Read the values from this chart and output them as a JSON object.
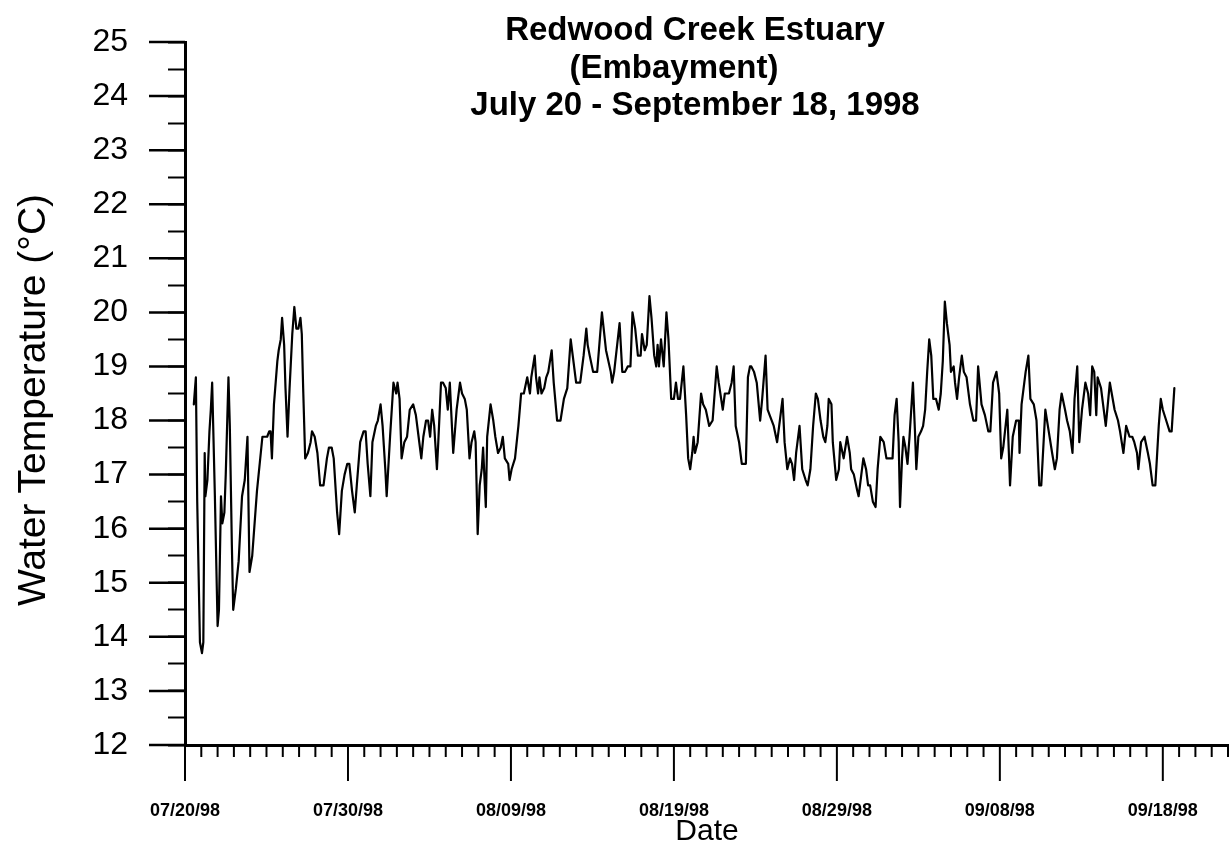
{
  "chart_data": {
    "type": "line",
    "title": "Redwood Creek Estuary\n(Embayment)\nJuly 20 - September 18, 1998",
    "xlabel": "Date",
    "ylabel": "Water Temperature (°C)",
    "grid": false,
    "xlim": [
      "1998-07-20",
      "1998-09-22"
    ],
    "xticks": [
      {
        "value": "1998-07-20",
        "label": "07/20/98"
      },
      {
        "value": "1998-07-21",
        "label": null
      },
      {
        "value": "1998-07-22",
        "label": null
      },
      {
        "value": "1998-07-23",
        "label": null
      },
      {
        "value": "1998-07-24",
        "label": null
      },
      {
        "value": "1998-07-25",
        "label": null
      },
      {
        "value": "1998-07-26",
        "label": null
      },
      {
        "value": "1998-07-27",
        "label": null
      },
      {
        "value": "1998-07-28",
        "label": null
      },
      {
        "value": "1998-07-29",
        "label": null
      },
      {
        "value": "1998-07-30",
        "label": "07/30/98"
      },
      {
        "value": "1998-07-31",
        "label": null
      },
      {
        "value": "1998-08-01",
        "label": null
      },
      {
        "value": "1998-08-02",
        "label": null
      },
      {
        "value": "1998-08-03",
        "label": null
      },
      {
        "value": "1998-08-04",
        "label": null
      },
      {
        "value": "1998-08-05",
        "label": null
      },
      {
        "value": "1998-08-06",
        "label": null
      },
      {
        "value": "1998-08-07",
        "label": null
      },
      {
        "value": "1998-08-08",
        "label": null
      },
      {
        "value": "1998-08-09",
        "label": "08/09/98"
      },
      {
        "value": "1998-08-10",
        "label": null
      },
      {
        "value": "1998-08-11",
        "label": null
      },
      {
        "value": "1998-08-12",
        "label": null
      },
      {
        "value": "1998-08-13",
        "label": null
      },
      {
        "value": "1998-08-14",
        "label": null
      },
      {
        "value": "1998-08-15",
        "label": null
      },
      {
        "value": "1998-08-16",
        "label": null
      },
      {
        "value": "1998-08-17",
        "label": null
      },
      {
        "value": "1998-08-18",
        "label": null
      },
      {
        "value": "1998-08-19",
        "label": "08/19/98"
      },
      {
        "value": "1998-08-20",
        "label": null
      },
      {
        "value": "1998-08-21",
        "label": null
      },
      {
        "value": "1998-08-22",
        "label": null
      },
      {
        "value": "1998-08-23",
        "label": null
      },
      {
        "value": "1998-08-24",
        "label": null
      },
      {
        "value": "1998-08-25",
        "label": null
      },
      {
        "value": "1998-08-26",
        "label": null
      },
      {
        "value": "1998-08-27",
        "label": null
      },
      {
        "value": "1998-08-28",
        "label": null
      },
      {
        "value": "1998-08-29",
        "label": "08/29/98"
      },
      {
        "value": "1998-08-30",
        "label": null
      },
      {
        "value": "1998-08-31",
        "label": null
      },
      {
        "value": "1998-09-01",
        "label": null
      },
      {
        "value": "1998-09-02",
        "label": null
      },
      {
        "value": "1998-09-03",
        "label": null
      },
      {
        "value": "1998-09-04",
        "label": null
      },
      {
        "value": "1998-09-05",
        "label": null
      },
      {
        "value": "1998-09-06",
        "label": null
      },
      {
        "value": "1998-09-07",
        "label": null
      },
      {
        "value": "1998-09-08",
        "label": "09/08/98"
      },
      {
        "value": "1998-09-09",
        "label": null
      },
      {
        "value": "1998-09-10",
        "label": null
      },
      {
        "value": "1998-09-11",
        "label": null
      },
      {
        "value": "1998-09-12",
        "label": null
      },
      {
        "value": "1998-09-13",
        "label": null
      },
      {
        "value": "1998-09-14",
        "label": null
      },
      {
        "value": "1998-09-15",
        "label": null
      },
      {
        "value": "1998-09-16",
        "label": null
      },
      {
        "value": "1998-09-17",
        "label": null
      },
      {
        "value": "1998-09-18",
        "label": "09/18/98"
      },
      {
        "value": "1998-09-19",
        "label": null
      },
      {
        "value": "1998-09-20",
        "label": null
      },
      {
        "value": "1998-09-21",
        "label": null
      },
      {
        "value": "1998-09-22",
        "label": null
      }
    ],
    "ylim": [
      12,
      25
    ],
    "yticks": [
      12,
      {
        "value": 12.5,
        "label": null
      },
      13,
      {
        "value": 13.5,
        "label": null
      },
      14,
      {
        "value": 14.5,
        "label": null
      },
      15,
      {
        "value": 15.5,
        "label": null
      },
      16,
      {
        "value": 16.5,
        "label": null
      },
      17,
      {
        "value": 17.5,
        "label": null
      },
      18,
      {
        "value": 18.5,
        "label": null
      },
      19,
      {
        "value": 19.5,
        "label": null
      },
      20,
      {
        "value": 20.5,
        "label": null
      },
      21,
      {
        "value": 21.5,
        "label": null
      },
      22,
      {
        "value": 22.5,
        "label": null
      },
      23,
      {
        "value": 23.5,
        "label": null
      },
      24,
      {
        "value": 24.5,
        "label": null
      },
      25
    ],
    "x": [
      "1998-07-20T13:00",
      "1998-07-20T16:00",
      "1998-07-20T18:00",
      "1998-07-20T22:00",
      "1998-07-21T01:00",
      "1998-07-21T03:00",
      "1998-07-21T05:00",
      "1998-07-21T06:00",
      "1998-07-21T09:00",
      "1998-07-21T12:00",
      "1998-07-21T14:00",
      "1998-07-21T16:00",
      "1998-07-21T20:00",
      "1998-07-22T00:00",
      "1998-07-22T02:00",
      "1998-07-22T05:00",
      "1998-07-22T07:00",
      "1998-07-22T10:00",
      "1998-07-22T12:00",
      "1998-07-22T16:00",
      "1998-07-22T18:00",
      "1998-07-22T21:00",
      "1998-07-22T23:00",
      "1998-07-23T03:00",
      "1998-07-23T07:00",
      "1998-07-23T12:00",
      "1998-07-23T16:00",
      "1998-07-23T20:00",
      "1998-07-23T23:00",
      "1998-07-24T03:00",
      "1998-07-24T10:00",
      "1998-07-24T18:00",
      "1998-07-25T01:00",
      "1998-07-25T04:00",
      "1998-07-25T06:00",
      "1998-07-25T08:00",
      "1998-07-25T11:00",
      "1998-07-25T16:00",
      "1998-07-25T18:00",
      "1998-07-25T21:00",
      "1998-07-25T23:00",
      "1998-07-26T02:00",
      "1998-07-26T04:00",
      "1998-07-26T07:00",
      "1998-07-26T10:00",
      "1998-07-26T14:00",
      "1998-07-26T17:00",
      "1998-07-26T20:00",
      "1998-07-26T23:00",
      "1998-07-27T02:00",
      "1998-07-27T04:00",
      "1998-07-27T06:00",
      "1998-07-27T09:00",
      "1998-07-27T13:00",
      "1998-07-27T17:00",
      "1998-07-27T19:00",
      "1998-07-27T23:00",
      "1998-07-28T03:00",
      "1998-07-28T07:00",
      "1998-07-28T12:00",
      "1998-07-28T17:00",
      "1998-07-28T20:00",
      "1998-07-29T00:00",
      "1998-07-29T03:00",
      "1998-07-29T08:00",
      "1998-07-29T11:00",
      "1998-07-29T15:00",
      "1998-07-29T19:00",
      "1998-07-29T23:00",
      "1998-07-30T02:00",
      "1998-07-30T06:00",
      "1998-07-30T10:00",
      "1998-07-30T13:00",
      "1998-07-30T18:00",
      "1998-07-30T23:00",
      "1998-07-31T02:00",
      "1998-07-31T05:00",
      "1998-07-31T09:00",
      "1998-07-31T12:00",
      "1998-07-31T17:00",
      "1998-07-31T20:00",
      "1998-08-01T00:00",
      "1998-08-01T03:00",
      "1998-08-01T07:00",
      "1998-08-01T09:00",
      "1998-08-01T14:00",
      "1998-08-01T19:00",
      "1998-08-01T23:00",
      "1998-08-02T01:00",
      "1998-08-02T04:00",
      "1998-08-02T07:00",
      "1998-08-02T11:00",
      "1998-08-02T15:00",
      "1998-08-02T19:00",
      "1998-08-03T00:00",
      "1998-08-03T04:00",
      "1998-08-03T08:00",
      "1998-08-03T12:00",
      "1998-08-03T15:00",
      "1998-08-03T19:00",
      "1998-08-03T22:00",
      "1998-08-04T01:00",
      "1998-08-04T04:00",
      "1998-08-04T07:00",
      "1998-08-04T11:00",
      "1998-08-04T13:00",
      "1998-08-04T17:00",
      "1998-08-04T20:00",
      "1998-08-05T00:00",
      "1998-08-05T03:00",
      "1998-08-05T06:00",
      "1998-08-05T11:00",
      "1998-08-05T16:00",
      "1998-08-05T21:00",
      "1998-08-06T00:00",
      "1998-08-06T04:00",
      "1998-08-06T07:00",
      "1998-08-06T11:00",
      "1998-08-06T14:00",
      "1998-08-06T18:00",
      "1998-08-06T20:00",
      "1998-08-06T23:00",
      "1998-08-07T02:00",
      "1998-08-07T05:00",
      "1998-08-07T07:00",
      "1998-08-07T11:00",
      "1998-08-07T13:00",
      "1998-08-07T18:00",
      "1998-08-07T22:00",
      "1998-08-08T01:00",
      "1998-08-08T05:00",
      "1998-08-08T09:00",
      "1998-08-08T12:00",
      "1998-08-08T15:00",
      "1998-08-08T20:00",
      "1998-08-08T22:00",
      "1998-08-09T01:00",
      "1998-08-09T06:00",
      "1998-08-09T11:00",
      "1998-08-09T15:00",
      "1998-08-09T19:00",
      "1998-08-10T00:00",
      "1998-08-10T04:00",
      "1998-08-10T06:00",
      "1998-08-10T11:00",
      "1998-08-10T13:00",
      "1998-08-10T16:00",
      "1998-08-10T18:00",
      "1998-08-10T21:00",
      "1998-08-11T01:00",
      "1998-08-11T04:00",
      "1998-08-11T07:00",
      "1998-08-11T12:00",
      "1998-08-11T15:00",
      "1998-08-11T20:00",
      "1998-08-12T01:00",
      "1998-08-12T06:00",
      "1998-08-12T11:00",
      "1998-08-12T16:00",
      "1998-08-12T19:00",
      "1998-08-13T00:00",
      "1998-08-13T06:00",
      "1998-08-13T11:00",
      "1998-08-13T15:00",
      "1998-08-13T17:00",
      "1998-08-13T20:00",
      "1998-08-14T01:00",
      "1998-08-14T07:00",
      "1998-08-14T14:00",
      "1998-08-14T20:00",
      "1998-08-15T03:00",
      "1998-08-15T05:00",
      "1998-08-15T08:00",
      "1998-08-15T16:00",
      "1998-08-15T20:00",
      "1998-08-16T00:00",
      "1998-08-16T04:00",
      "1998-08-16T08:00",
      "1998-08-16T11:00",
      "1998-08-16T15:00",
      "1998-08-16T19:00",
      "1998-08-16T23:00",
      "1998-08-17T01:00",
      "1998-08-17T05:00",
      "1998-08-17T08:00",
      "1998-08-17T12:00",
      "1998-08-17T15:00",
      "1998-08-17T19:00",
      "1998-08-17T22:00",
      "1998-08-18T00:00",
      "1998-08-18T02:00",
      "1998-08-18T05:00",
      "1998-08-18T09:00",
      "1998-08-18T13:00",
      "1998-08-18T16:00",
      "1998-08-18T20:00",
      "1998-08-19T00:00",
      "1998-08-19T03:00",
      "1998-08-19T06:00",
      "1998-08-19T09:00",
      "1998-08-19T14:00",
      "1998-08-19T18:00",
      "1998-08-19T21:00",
      "1998-08-20T00:00",
      "1998-08-20T03:00",
      "1998-08-20T05:00",
      "1998-08-20T07:00",
      "1998-08-20T11:00",
      "1998-08-20T16:00",
      "1998-08-20T19:00",
      "1998-08-20T23:00",
      "1998-08-21T04:00",
      "1998-08-21T09:00",
      "1998-08-21T15:00",
      "1998-08-21T18:00",
      "1998-08-22T00:00",
      "1998-08-22T03:00",
      "1998-08-22T09:00",
      "1998-08-22T13:00",
      "1998-08-22T16:00",
      "1998-08-22T19:00",
      "1998-08-23T00:00",
      "1998-08-23T04:00",
      "1998-08-23T10:00",
      "1998-08-23T13:00",
      "1998-08-23T16:00",
      "1998-08-23T18:00",
      "1998-08-23T22:00",
      "1998-08-24T02:00",
      "1998-08-24T07:00",
      "1998-08-24T10:00",
      "1998-08-24T15:00",
      "1998-08-24T18:00",
      "1998-08-24T21:00",
      "1998-08-25T03:00",
      "1998-08-25T08:00",
      "1998-08-25T12:00",
      "1998-08-25T16:00",
      "1998-08-25T19:00",
      "1998-08-25T23:00",
      "1998-08-26T03:00",
      "1998-08-26T06:00",
      "1998-08-26T09:00",
      "1998-08-26T12:00",
      "1998-08-26T17:00",
      "1998-08-26T21:00",
      "1998-08-27T02:00",
      "1998-08-27T05:00",
      "1998-08-27T09:00",
      "1998-08-27T13:00",
      "1998-08-27T17:00",
      "1998-08-27T20:00",
      "1998-08-28T00:00",
      "1998-08-28T04:00",
      "1998-08-28T07:00",
      "1998-08-28T10:00",
      "1998-08-28T12:00",
      "1998-08-28T16:00",
      "1998-08-28T18:00",
      "1998-08-28T23:00",
      "1998-08-29T03:00",
      "1998-08-29T05:00",
      "1998-08-29T10:00",
      "1998-08-29T15:00",
      "1998-08-29T19:00",
      "1998-08-29T21:00",
      "1998-08-30T01:00",
      "1998-08-30T06:00",
      "1998-08-30T08:00",
      "1998-08-30T12:00",
      "1998-08-30T15:00",
      "1998-08-30T19:00",
      "1998-08-30T22:00",
      "1998-08-31T01:00",
      "1998-08-31T05:00",
      "1998-08-31T09:00",
      "1998-08-31T12:00",
      "1998-08-31T16:00",
      "1998-08-31T21:00",
      "1998-09-01T01:00",
      "1998-09-01T06:00",
      "1998-09-01T10:00",
      "1998-09-01T13:00",
      "1998-09-01T16:00",
      "1998-09-01T19:00",
      "1998-09-01T21:00",
      "1998-09-02T00:00",
      "1998-09-02T02:00",
      "1998-09-02T05:00",
      "1998-09-02T08:00",
      "1998-09-02T11:00",
      "1998-09-02T16:00",
      "1998-09-02T19:00",
      "1998-09-02T21:00",
      "1998-09-03T00:00",
      "1998-09-03T04:00",
      "1998-09-03T07:00",
      "1998-09-03T10:00",
      "1998-09-03T13:00",
      "1998-09-03T16:00",
      "1998-09-03T19:00",
      "1998-09-03T22:00",
      "1998-09-04T02:00",
      "1998-09-04T06:00",
      "1998-09-04T09:00",
      "1998-09-04T12:00",
      "1998-09-04T15:00",
      "1998-09-04T18:00",
      "1998-09-04T22:00",
      "1998-09-05T00:00",
      "1998-09-05T04:00",
      "1998-09-05T06:00",
      "1998-09-05T09:00",
      "1998-09-05T12:00",
      "1998-09-05T16:00",
      "1998-09-05T19:00",
      "1998-09-05T23:00",
      "1998-09-06T04:00",
      "1998-09-06T09:00",
      "1998-09-06T13:00",
      "1998-09-06T16:00",
      "1998-09-06T21:00",
      "1998-09-07T02:00",
      "1998-09-07T07:00",
      "1998-09-07T10:00",
      "1998-09-07T14:00",
      "1998-09-07T19:00",
      "1998-09-07T23:00",
      "1998-09-08T02:00",
      "1998-09-08T05:00",
      "1998-09-08T11:00",
      "1998-09-08T15:00",
      "1998-09-08T19:00",
      "1998-09-09T00:00",
      "1998-09-09T04:00",
      "1998-09-09T05:00",
      "1998-09-09T08:00",
      "1998-09-09T11:00",
      "1998-09-09T14:00",
      "1998-09-09T18:00",
      "1998-09-09T21:00",
      "1998-09-10T02:00",
      "1998-09-10T06:00",
      "1998-09-10T10:00",
      "1998-09-10T13:00",
      "1998-09-10T19:00",
      "1998-09-11T00:00",
      "1998-09-11T05:00",
      "1998-09-11T09:00",
      "1998-09-11T12:00",
      "1998-09-11T16:00",
      "1998-09-11T19:00",
      "1998-09-12T00:00",
      "1998-09-12T03:00",
      "1998-09-12T07:00",
      "1998-09-12T11:00",
      "1998-09-12T14:00",
      "1998-09-12T18:00",
      "1998-09-12T21:00",
      "1998-09-13T01:00",
      "1998-09-13T06:00",
      "1998-09-13T10:00",
      "1998-09-13T13:00",
      "1998-09-13T16:00",
      "1998-09-13T19:00",
      "1998-09-13T22:00",
      "1998-09-14T00:00",
      "1998-09-14T05:00",
      "1998-09-14T09:00",
      "1998-09-14T12:00",
      "1998-09-14T15:00",
      "1998-09-14T18:00",
      "1998-09-15T01:00",
      "1998-09-15T06:00",
      "1998-09-15T09:00",
      "1998-09-15T14:00",
      "1998-09-15T18:00",
      "1998-09-15T23:00",
      "1998-09-16T03:00",
      "1998-09-16T06:00",
      "1998-09-16T10:00",
      "1998-09-16T12:00",
      "1998-09-16T16:00",
      "1998-09-16T21:00",
      "1998-09-17T02:00",
      "1998-09-17T05:00",
      "1998-09-17T09:00",
      "1998-09-17T13:00",
      "1998-09-17T18:00",
      "1998-09-17T21:00",
      "1998-09-18T00:00",
      "1998-09-18T05:00",
      "1998-09-18T10:00",
      "1998-09-18T13:00",
      "1998-09-18T17:00"
    ],
    "series": [
      {
        "color": "#000000",
        "values": [
          18.3,
          18.8,
          16.5,
          13.9,
          13.7,
          13.9,
          17.4,
          16.6,
          16.9,
          17.8,
          18.2,
          18.7,
          16.6,
          14.2,
          14.5,
          16.6,
          16.1,
          16.3,
          17.0,
          18.8,
          17.9,
          15.7,
          14.5,
          14.9,
          15.4,
          16.6,
          16.9,
          17.7,
          15.2,
          15.5,
          16.7,
          17.7,
          17.7,
          17.8,
          17.8,
          17.3,
          18.3,
          19.1,
          19.3,
          19.5,
          19.9,
          19.4,
          18.6,
          17.7,
          18.6,
          19.6,
          20.1,
          19.7,
          19.7,
          19.9,
          19.6,
          18.6,
          17.3,
          17.4,
          17.6,
          17.8,
          17.7,
          17.4,
          16.8,
          16.8,
          17.3,
          17.5,
          17.5,
          17.3,
          16.3,
          15.9,
          16.7,
          17.0,
          17.2,
          17.2,
          16.7,
          16.3,
          16.8,
          17.6,
          17.8,
          17.8,
          17.2,
          16.6,
          17.6,
          17.9,
          18.0,
          18.3,
          17.9,
          17.1,
          16.6,
          17.7,
          18.7,
          18.5,
          18.7,
          18.4,
          17.3,
          17.6,
          17.7,
          18.2,
          18.3,
          18.1,
          17.7,
          17.3,
          17.7,
          18.0,
          18.0,
          17.7,
          18.2,
          17.9,
          17.1,
          17.6,
          18.7,
          18.7,
          18.6,
          18.2,
          18.7,
          17.4,
          18.2,
          18.7,
          18.5,
          18.4,
          18.2,
          17.3,
          17.6,
          17.8,
          17.6,
          15.9,
          16.8,
          17.1,
          17.5,
          16.4,
          17.7,
          18.3,
          18.0,
          17.7,
          17.4,
          17.5,
          17.7,
          17.3,
          17.2,
          16.9,
          17.1,
          17.3,
          17.9,
          18.5,
          18.5,
          18.8,
          18.5,
          18.8,
          19.2,
          18.8,
          18.5,
          18.8,
          18.5,
          18.6,
          18.8,
          18.9,
          19.3,
          18.7,
          18.0,
          18.0,
          18.4,
          18.6,
          19.5,
          19.2,
          18.7,
          18.7,
          19.2,
          19.7,
          19.4,
          19.2,
          18.9,
          18.9,
          20.0,
          19.3,
          18.9,
          18.7,
          18.9,
          19.8,
          18.9,
          18.9,
          19.0,
          19.0,
          20.0,
          19.7,
          19.2,
          19.2,
          19.6,
          19.3,
          19.4,
          20.3,
          19.9,
          19.2,
          19.0,
          19.4,
          19.0,
          19.5,
          19.0,
          20.0,
          19.5,
          18.4,
          18.4,
          18.7,
          18.4,
          18.4,
          19.0,
          18.1,
          17.3,
          17.1,
          17.4,
          17.7,
          17.4,
          17.6,
          18.5,
          18.3,
          18.2,
          17.9,
          18.0,
          19.0,
          18.7,
          18.2,
          18.5,
          18.5,
          18.7,
          19.0,
          17.9,
          17.6,
          17.2,
          17.2,
          18.8,
          19.0,
          19.0,
          18.9,
          18.7,
          18.0,
          18.4,
          19.2,
          18.2,
          18.1,
          17.9,
          17.6,
          18.0,
          18.4,
          17.6,
          17.1,
          17.3,
          17.2,
          16.9,
          17.4,
          17.9,
          17.1,
          16.9,
          16.8,
          17.1,
          17.9,
          18.5,
          18.4,
          18.0,
          17.7,
          17.6,
          17.9,
          18.4,
          18.3,
          17.6,
          16.9,
          17.1,
          17.6,
          17.3,
          17.7,
          17.4,
          17.1,
          17.0,
          16.7,
          16.6,
          17.0,
          17.3,
          17.1,
          16.8,
          16.8,
          16.5,
          16.4,
          17.1,
          17.7,
          17.6,
          17.3,
          17.3,
          17.3,
          18.1,
          18.4,
          17.6,
          16.4,
          17.3,
          17.7,
          17.5,
          17.2,
          17.7,
          18.7,
          17.8,
          17.1,
          17.7,
          17.8,
          17.9,
          18.2,
          18.9,
          19.5,
          19.2,
          18.4,
          18.4,
          18.2,
          18.5,
          19.1,
          20.2,
          19.8,
          19.4,
          18.9,
          19.0,
          18.7,
          18.4,
          18.8,
          19.2,
          18.9,
          18.8,
          18.3,
          18.0,
          18.0,
          19.0,
          18.3,
          18.1,
          17.8,
          17.8,
          18.7,
          18.9,
          18.5,
          17.3,
          17.5,
          18.2,
          16.8,
          17.7,
          18.0,
          18.0,
          17.4,
          18.3,
          18.6,
          18.9,
          19.2,
          18.4,
          18.3,
          18.0,
          16.8,
          16.8,
          18.2,
          17.8,
          17.4,
          17.1,
          17.3,
          18.2,
          18.5,
          18.2,
          18.0,
          17.8,
          17.4,
          18.4,
          19.0,
          17.6,
          18.2,
          18.7,
          18.5,
          18.1,
          19.0,
          18.9,
          18.1,
          18.8,
          18.6,
          18.2,
          17.9,
          18.3,
          18.7,
          18.2,
          18.0,
          17.8,
          17.4,
          17.9,
          17.7,
          17.7,
          17.6,
          17.4,
          17.1,
          17.6,
          17.7,
          17.4,
          17.2,
          16.8,
          16.8,
          17.9,
          18.4,
          18.2,
          18.0,
          17.8,
          17.8,
          18.6
        ]
      }
    ]
  }
}
